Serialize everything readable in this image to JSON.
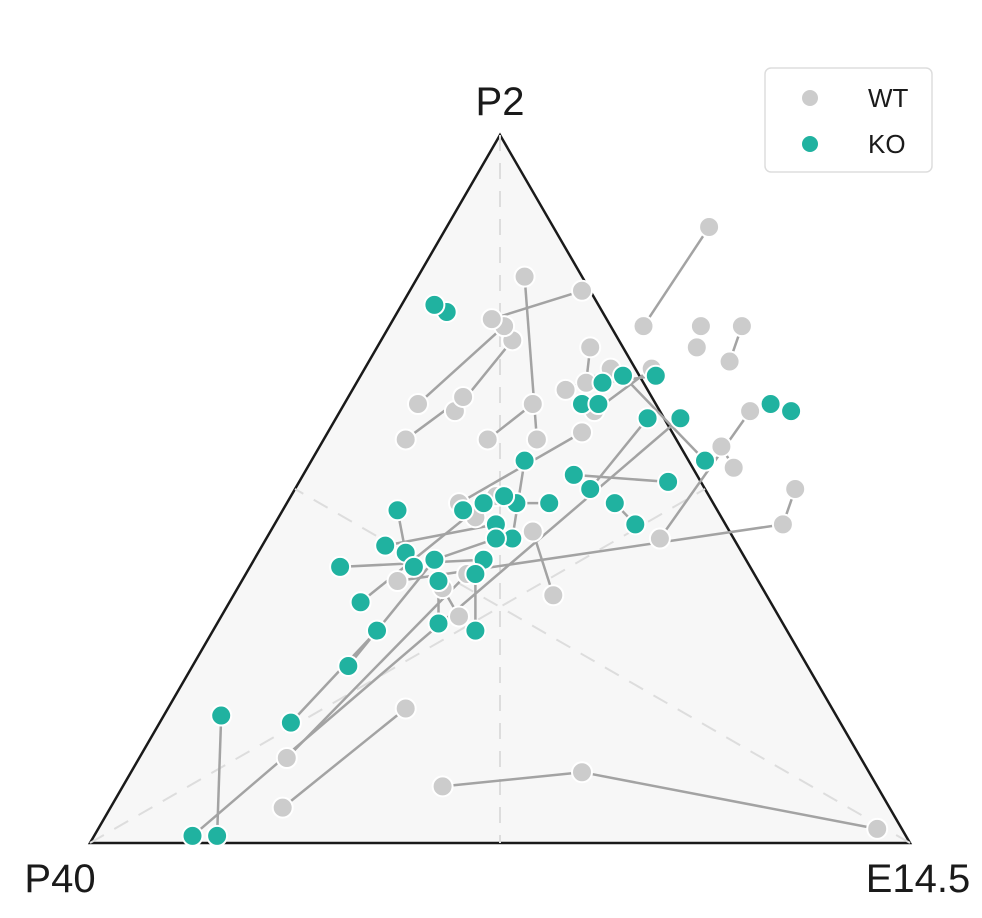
{
  "chart_data": {
    "type": "scatter",
    "subtype": "ternary",
    "title": "",
    "vertices": {
      "top": "P2",
      "left": "P40",
      "right": "E14.5"
    },
    "grid": "dashed median lines from each vertex",
    "legend": {
      "position": "top-right",
      "entries": [
        {
          "name": "WT",
          "color": "#cccccc"
        },
        {
          "name": "KO",
          "color": "#20b2a0"
        }
      ]
    },
    "series": [
      {
        "name": "WT",
        "color": "#cccccc",
        "points": [
          [
            0.95,
            0.02
          ],
          [
            0.55,
            0.1
          ],
          [
            0.39,
            0.08
          ],
          [
            0.62,
            0.45
          ],
          [
            0.61,
            0.5
          ],
          [
            0.52,
            0.53
          ],
          [
            0.49,
            0.56
          ],
          [
            0.5,
            0.61
          ],
          [
            0.48,
            0.43
          ],
          [
            0.43,
            0.73
          ],
          [
            0.44,
            0.68
          ],
          [
            0.38,
            0.73
          ],
          [
            0.39,
            0.7
          ],
          [
            0.21,
            0.05
          ],
          [
            0.29,
            0.19
          ],
          [
            0.18,
            0.12
          ],
          [
            0.27,
            0.38
          ],
          [
            0.29,
            0.32
          ],
          [
            0.25,
            0.36
          ],
          [
            0.24,
            0.46
          ],
          [
            0.25,
            0.49
          ],
          [
            0.23,
            0.62
          ],
          [
            0.2,
            0.57
          ],
          [
            0.26,
            0.64
          ],
          [
            0.3,
            0.67
          ],
          [
            0.31,
            0.61
          ],
          [
            0.35,
            0.67
          ],
          [
            0.26,
            0.7
          ],
          [
            0.28,
            0.65
          ],
          [
            0.39,
            0.35
          ],
          [
            0.32,
            0.44
          ],
          [
            0.21,
            0.48
          ],
          [
            0.31,
            0.58
          ],
          [
            0.16,
            0.71
          ],
          [
            0.14,
            0.61
          ],
          [
            0.1,
            0.57
          ],
          [
            0.14,
            0.63
          ],
          [
            0.09,
            0.62
          ],
          [
            0.14,
            0.73
          ],
          [
            0.12,
            0.74
          ],
          [
            0.21,
            0.78
          ],
          [
            0.31,
            0.73
          ],
          [
            0.32,
            0.87
          ],
          [
            0.13,
            0.8
          ],
          [
            0.26,
            0.57
          ],
          [
            0.19,
            0.37
          ]
        ],
        "lines": [
          [
            0,
            1
          ],
          [
            1,
            2
          ],
          [
            3,
            4
          ],
          [
            5,
            6
          ],
          [
            7,
            8
          ],
          [
            9,
            10
          ],
          [
            11,
            12
          ],
          [
            13,
            14
          ],
          [
            15,
            16
          ],
          [
            17,
            18
          ],
          [
            19,
            20
          ],
          [
            21,
            22
          ],
          [
            23,
            24
          ],
          [
            25,
            26
          ],
          [
            27,
            28
          ],
          [
            29,
            30
          ],
          [
            31,
            32
          ],
          [
            33,
            34
          ],
          [
            35,
            36
          ],
          [
            37,
            38
          ],
          [
            39,
            40
          ],
          [
            41,
            42
          ],
          [
            43,
            44
          ],
          [
            45,
            3
          ]
        ]
      },
      {
        "name": "KO",
        "color": "#20b2a0",
        "points": [
          [
            0.15,
            0.01
          ],
          [
            0.07,
            0.18
          ],
          [
            0.12,
            0.01
          ],
          [
            0.4,
            0.48
          ],
          [
            0.44,
            0.45
          ],
          [
            0.45,
            0.51
          ],
          [
            0.33,
            0.52
          ],
          [
            0.36,
            0.5
          ],
          [
            0.38,
            0.6
          ],
          [
            0.42,
            0.6
          ],
          [
            0.2,
            0.3
          ],
          [
            0.16,
            0.17
          ],
          [
            0.19,
            0.25
          ],
          [
            0.22,
            0.4
          ],
          [
            0.27,
            0.31
          ],
          [
            0.24,
            0.37
          ],
          [
            0.28,
            0.48
          ],
          [
            0.32,
            0.48
          ],
          [
            0.3,
            0.43
          ],
          [
            0.26,
            0.54
          ],
          [
            0.28,
            0.4
          ],
          [
            0.11,
            0.39
          ],
          [
            0.14,
            0.47
          ],
          [
            0.18,
            0.41
          ],
          [
            0.26,
            0.49
          ],
          [
            0.22,
            0.47
          ],
          [
            0.24,
            0.48
          ],
          [
            0.16,
            0.34
          ],
          [
            0.15,
            0.42
          ],
          [
            0.27,
            0.45
          ],
          [
            0.28,
            0.38
          ],
          [
            0.32,
            0.3
          ],
          [
            0.55,
            0.61
          ],
          [
            0.52,
            0.62
          ],
          [
            0.36,
            0.66
          ],
          [
            0.3,
            0.65
          ],
          [
            0.48,
            0.54
          ],
          [
            0.32,
            0.66
          ],
          [
            0.29,
            0.62
          ],
          [
            0.31,
            0.62
          ],
          [
            0.2,
            0.39
          ],
          [
            0.28,
            0.43
          ],
          [
            0.06,
            0.75
          ],
          [
            0.04,
            0.76
          ]
        ],
        "lines": [
          [
            0,
            1
          ],
          [
            2,
            9
          ],
          [
            3,
            4
          ],
          [
            5,
            6
          ],
          [
            7,
            8
          ],
          [
            10,
            11
          ],
          [
            12,
            13
          ],
          [
            14,
            15
          ],
          [
            16,
            17
          ],
          [
            18,
            19
          ],
          [
            20,
            21
          ],
          [
            22,
            23
          ],
          [
            24,
            25
          ],
          [
            26,
            27
          ],
          [
            28,
            29
          ],
          [
            30,
            31
          ],
          [
            32,
            33
          ],
          [
            34,
            35
          ],
          [
            36,
            37
          ],
          [
            38,
            39
          ],
          [
            40,
            41
          ],
          [
            42,
            43
          ]
        ]
      }
    ]
  }
}
